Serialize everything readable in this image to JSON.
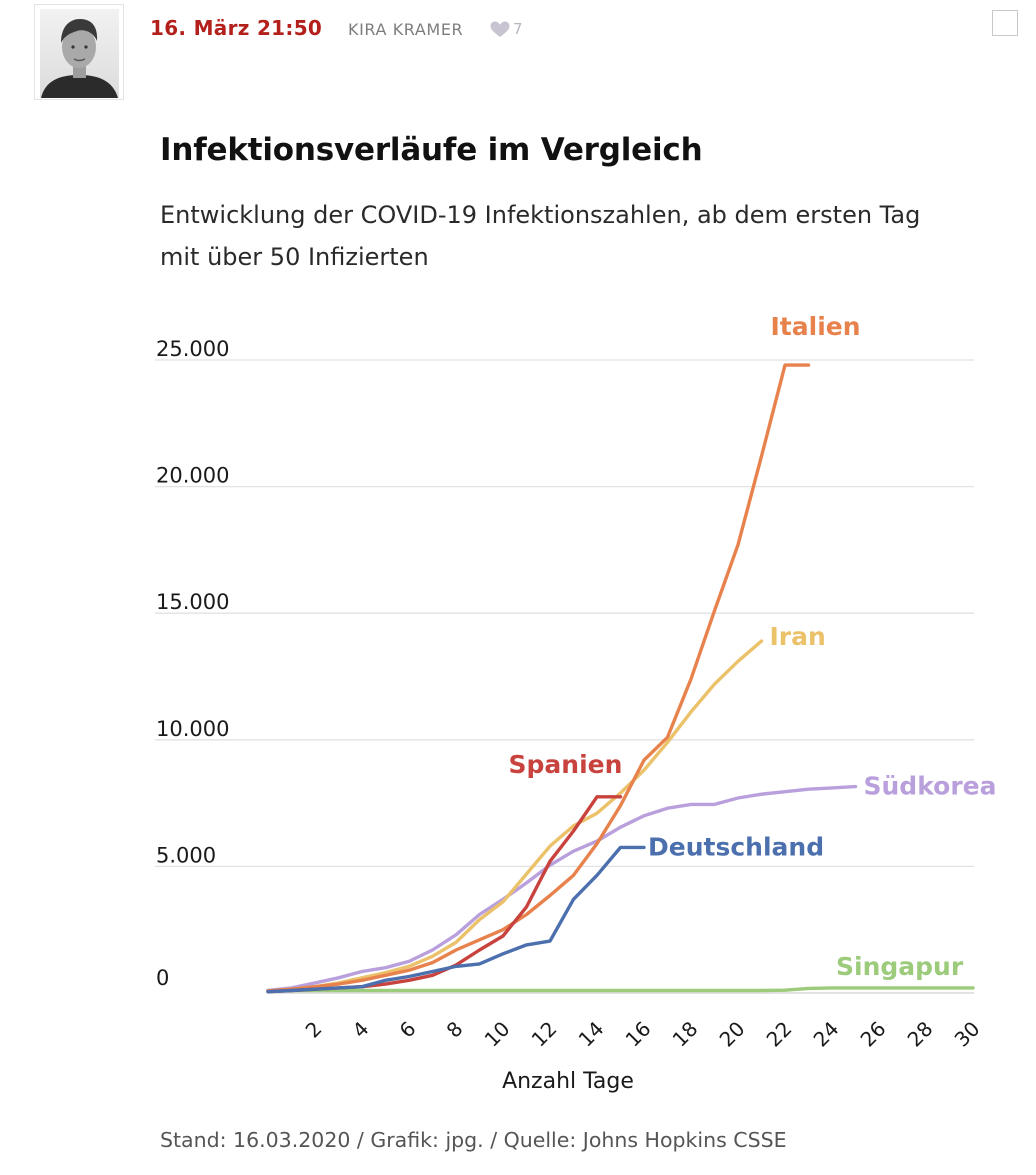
{
  "post": {
    "timestamp": "16. März 21:50",
    "author": "KIRA KRAMER",
    "like_count": "7",
    "icons": {
      "avatar": "author-photo",
      "like": "heart-icon",
      "select": "checkbox-icon"
    }
  },
  "chart_data": {
    "type": "line",
    "title": "Infektionsverläufe im Vergleich",
    "subtitle": "Entwicklung der COVID-19 Infektionszahlen, ab dem ersten Tag mit über 50 Infizierten",
    "xlabel": "Anzahl Tage",
    "ylabel": "",
    "xlim": [
      0,
      30
    ],
    "ylim": [
      0,
      25000
    ],
    "x_ticks": [
      "2",
      "4",
      "6",
      "8",
      "10",
      "12",
      "14",
      "16",
      "18",
      "20",
      "22",
      "24",
      "26",
      "28",
      "30"
    ],
    "y_ticks": [
      "0",
      "5.000",
      "10.000",
      "15.000",
      "20.000",
      "25.000"
    ],
    "y_tick_values": [
      0,
      5000,
      10000,
      15000,
      20000,
      25000
    ],
    "grid": true,
    "source": "Stand: 16.03.2020 / Grafik: jpg. / Quelle: Johns Hopkins CSSE",
    "series": [
      {
        "name": "Singapur",
        "color": "#9ccb7c",
        "x": [
          0,
          1,
          2,
          3,
          4,
          5,
          6,
          7,
          8,
          9,
          10,
          11,
          12,
          13,
          14,
          15,
          16,
          17,
          18,
          19,
          20,
          21,
          22,
          23,
          24,
          25,
          26,
          27,
          28,
          29,
          30
        ],
        "values": [
          100,
          100,
          100,
          100,
          100,
          100,
          100,
          100,
          100,
          100,
          100,
          100,
          100,
          100,
          100,
          100,
          100,
          100,
          100,
          100,
          100,
          100,
          110,
          180,
          200,
          200,
          200,
          200,
          200,
          200,
          200
        ]
      },
      {
        "name": "Südkorea",
        "color": "#b9a0dc",
        "x": [
          0,
          1,
          2,
          3,
          4,
          5,
          6,
          7,
          8,
          9,
          10,
          11,
          12,
          13,
          14,
          15,
          16,
          17,
          18,
          19,
          20,
          21,
          22,
          23,
          24,
          25
        ],
        "values": [
          100,
          200,
          400,
          600,
          850,
          1000,
          1250,
          1700,
          2300,
          3100,
          3700,
          4350,
          5050,
          5600,
          6000,
          6550,
          7000,
          7300,
          7450,
          7450,
          7700,
          7850,
          7950,
          8050,
          8100,
          8150
        ]
      },
      {
        "name": "Iran",
        "color": "#ebc16a",
        "x": [
          0,
          1,
          2,
          3,
          4,
          5,
          6,
          7,
          8,
          9,
          10,
          11,
          12,
          13,
          14,
          15,
          16,
          17,
          18,
          19,
          20,
          21
        ],
        "values": [
          60,
          150,
          250,
          400,
          600,
          800,
          1050,
          1450,
          2000,
          2900,
          3600,
          4700,
          5800,
          6600,
          7100,
          7900,
          8800,
          9900,
          11100,
          12200,
          13100,
          13900
        ]
      },
      {
        "name": "Italien",
        "color": "#e8824d",
        "x": [
          0,
          1,
          2,
          3,
          4,
          5,
          6,
          7,
          8,
          9,
          10,
          11,
          12,
          13,
          14,
          15,
          16,
          17,
          18,
          19,
          20,
          21,
          22,
          23
        ],
        "values": [
          80,
          150,
          250,
          350,
          500,
          700,
          900,
          1200,
          1700,
          2100,
          2500,
          3100,
          3850,
          4650,
          5900,
          7400,
          9200,
          10100,
          12400,
          15100,
          17700,
          21200,
          24800,
          24800
        ]
      },
      {
        "name": "Spanien",
        "color": "#c8423e",
        "x": [
          0,
          1,
          2,
          3,
          4,
          5,
          6,
          7,
          8,
          9,
          10,
          11,
          12,
          13,
          14,
          15
        ],
        "values": [
          50,
          100,
          150,
          200,
          250,
          350,
          500,
          700,
          1100,
          1700,
          2250,
          3400,
          5200,
          6400,
          7750,
          7750
        ]
      },
      {
        "name": "Deutschland",
        "color": "#4c6fad",
        "x": [
          0,
          1,
          2,
          3,
          4,
          5,
          6,
          7,
          8,
          9,
          10,
          11,
          12,
          13,
          14,
          15,
          16
        ],
        "values": [
          50,
          100,
          150,
          200,
          250,
          500,
          650,
          850,
          1050,
          1150,
          1550,
          1900,
          2050,
          3700,
          4650,
          5750,
          5750
        ]
      }
    ]
  }
}
